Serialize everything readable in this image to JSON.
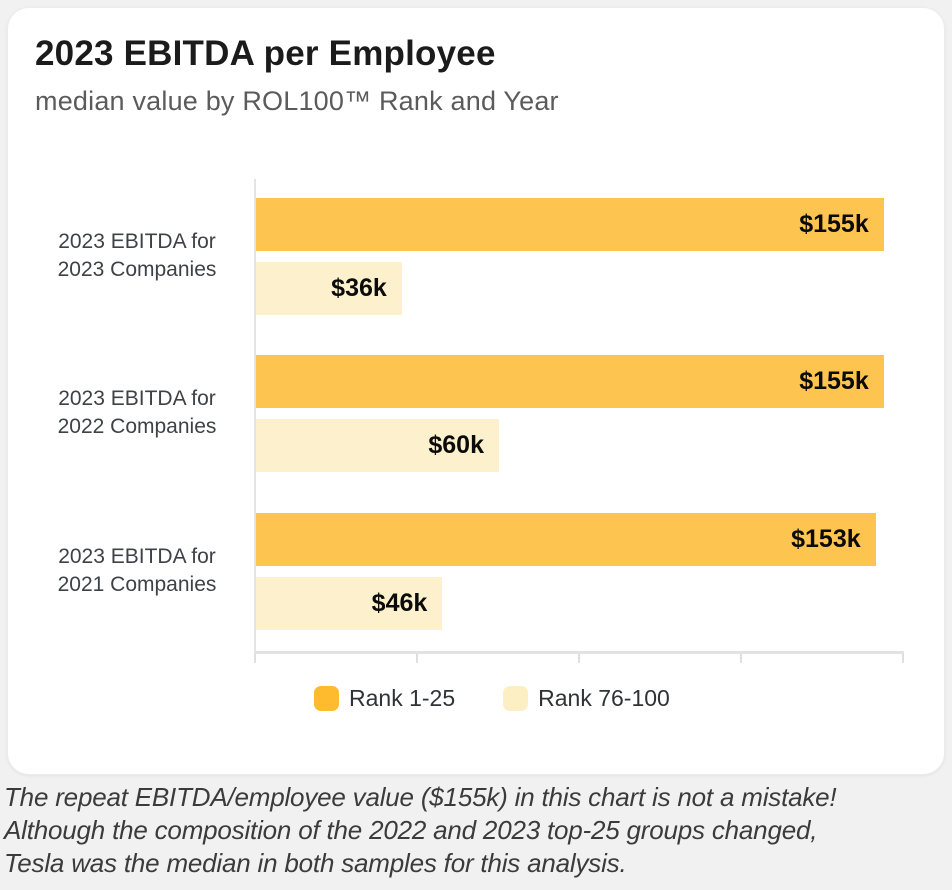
{
  "page": {
    "background": "#F1F1F1"
  },
  "card": {
    "title": "2023 EBITDA per Employee",
    "subtitle": "median value by ROL100™ Rank and Year"
  },
  "chart_data": {
    "type": "bar",
    "orientation": "horizontal",
    "title": "2023 EBITDA per Employee",
    "subtitle": "median value by ROL100™ Rank and Year",
    "categories": [
      {
        "line1": "2023 EBITDA for",
        "line2": "2023 Companies"
      },
      {
        "line1": "2023 EBITDA for",
        "line2": "2022 Companies"
      },
      {
        "line1": "2023 EBITDA for",
        "line2": "2021 Companies"
      }
    ],
    "series": [
      {
        "name": "Rank 1-25",
        "color": "#FDBB2D",
        "bar_color": "#FDC54F",
        "values": [
          155,
          155,
          153
        ],
        "labels": [
          "$155k",
          "$155k",
          "$153k"
        ]
      },
      {
        "name": "Rank 76-100",
        "color": "#FCEFC4",
        "bar_color": "#FCF1CC",
        "values": [
          36,
          60,
          46
        ],
        "labels": [
          "$36k",
          "$60k",
          "$46k"
        ]
      }
    ],
    "value_unit": "USD thousands per employee",
    "xlim": [
      0,
      160
    ],
    "x_ticks": [
      0,
      40,
      80,
      120,
      160
    ],
    "x_tick_labels_visible": false,
    "grid": false,
    "legend_position": "bottom"
  },
  "footnote": {
    "lines": [
      "The repeat EBITDA/employee value ($155k) in this chart is not a mistake!",
      "Although the composition of the 2022 and 2023 top-25 groups changed,",
      "Tesla was the median in both samples for this analysis."
    ]
  }
}
